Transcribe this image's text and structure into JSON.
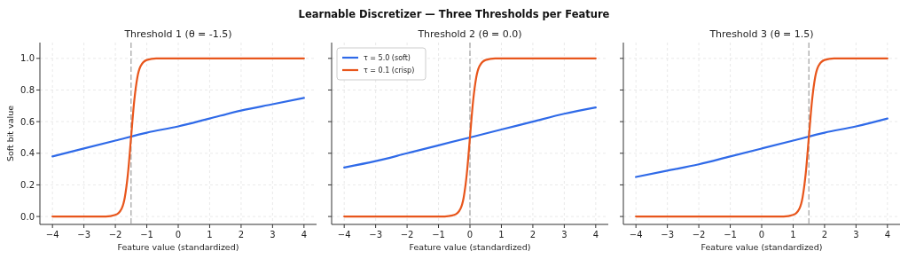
{
  "chart_data": [
    {
      "type": "line",
      "title": "Threshold 1  (θ = -1.5)",
      "xlabel": "Feature value (standardized)",
      "ylabel": "Soft bit value",
      "annotations": [
        "Learnable Discretizer — Three Thresholds per Feature"
      ],
      "xlim": [
        -4.4,
        4.4
      ],
      "ylim": [
        -0.05,
        1.1
      ],
      "xticks": [
        {
          "value": -4,
          "label": "−4"
        },
        {
          "value": -3,
          "label": "−3"
        },
        {
          "value": -2,
          "label": "−2"
        },
        {
          "value": -1,
          "label": "−1"
        },
        0,
        1,
        2,
        3,
        4
      ],
      "yticks": [
        {
          "value": 0,
          "label": "0.0"
        },
        0.2,
        0.4,
        0.6,
        0.8,
        {
          "value": 1,
          "label": "1.0"
        }
      ],
      "grid": true,
      "legend": false,
      "line_style": "solid",
      "marker": "none",
      "ref_lines": [
        {
          "axis": "x",
          "value": -1.5,
          "color": "#a0a0a0",
          "line_style": "dashed"
        }
      ],
      "series": [
        {
          "color": "#2f6ae8",
          "x": [
            -4,
            -3,
            -2,
            -1,
            0,
            1,
            2,
            3,
            4
          ],
          "values": [
            0.38,
            0.43,
            0.48,
            0.53,
            0.57,
            0.62,
            0.67,
            0.71,
            0.75
          ]
        },
        {
          "color": "#e8561c",
          "x": [
            -4,
            -2.3,
            -2,
            -1.8,
            -1.7,
            -1.6,
            -1.5,
            -1.4,
            -1.3,
            -1.2,
            -1,
            -0.7,
            4
          ],
          "values": [
            0,
            0,
            0.01,
            0.05,
            0.12,
            0.27,
            0.5,
            0.73,
            0.88,
            0.95,
            0.99,
            1,
            1
          ]
        }
      ]
    },
    {
      "type": "line",
      "title": "Threshold 2  (θ = 0.0)",
      "xlabel": "Feature value (standardized)",
      "xlim": [
        -4.4,
        4.4
      ],
      "ylim": [
        -0.05,
        1.1
      ],
      "xticks": [
        {
          "value": -4,
          "label": "−4"
        },
        {
          "value": -3,
          "label": "−3"
        },
        {
          "value": -2,
          "label": "−2"
        },
        {
          "value": -1,
          "label": "−1"
        },
        0,
        1,
        2,
        3,
        4
      ],
      "yticks": [
        0,
        0.2,
        0.4,
        0.6,
        0.8,
        1
      ],
      "tick_labels": "x",
      "grid": true,
      "legend": "top left",
      "line_style": "solid",
      "marker": "none",
      "ref_lines": [
        {
          "axis": "x",
          "value": 0,
          "color": "#a0a0a0",
          "line_style": "dashed"
        }
      ],
      "series": [
        {
          "name": "τ = 5.0  (soft)",
          "color": "#2f6ae8",
          "x": [
            -4,
            -3,
            -2,
            -1,
            0,
            1,
            2,
            3,
            4
          ],
          "values": [
            0.31,
            0.35,
            0.4,
            0.45,
            0.5,
            0.55,
            0.6,
            0.65,
            0.69
          ]
        },
        {
          "name": "τ = 0.1  (crisp)",
          "color": "#e8561c",
          "x": [
            -4,
            -0.8,
            -0.5,
            -0.3,
            -0.2,
            -0.1,
            0,
            0.1,
            0.2,
            0.3,
            0.5,
            0.8,
            4
          ],
          "values": [
            0,
            0,
            0.01,
            0.05,
            0.12,
            0.27,
            0.5,
            0.73,
            0.88,
            0.95,
            0.99,
            1,
            1
          ]
        }
      ]
    },
    {
      "type": "line",
      "title": "Threshold 3  (θ = 1.5)",
      "xlabel": "Feature value (standardized)",
      "xlim": [
        -4.4,
        4.4
      ],
      "ylim": [
        -0.05,
        1.1
      ],
      "xticks": [
        {
          "value": -4,
          "label": "−4"
        },
        {
          "value": -3,
          "label": "−3"
        },
        {
          "value": -2,
          "label": "−2"
        },
        {
          "value": -1,
          "label": "−1"
        },
        0,
        1,
        2,
        3,
        4
      ],
      "yticks": [
        0,
        0.2,
        0.4,
        0.6,
        0.8,
        1
      ],
      "tick_labels": "x",
      "grid": true,
      "legend": false,
      "line_style": "solid",
      "marker": "none",
      "ref_lines": [
        {
          "axis": "x",
          "value": 1.5,
          "color": "#a0a0a0",
          "line_style": "dashed"
        }
      ],
      "series": [
        {
          "color": "#2f6ae8",
          "x": [
            -4,
            -3,
            -2,
            -1,
            0,
            1,
            2,
            3,
            4
          ],
          "values": [
            0.25,
            0.29,
            0.33,
            0.38,
            0.43,
            0.48,
            0.53,
            0.57,
            0.62
          ]
        },
        {
          "color": "#e8561c",
          "x": [
            -4,
            0.7,
            1,
            1.2,
            1.3,
            1.4,
            1.5,
            1.6,
            1.7,
            1.8,
            2,
            2.3,
            4
          ],
          "values": [
            0,
            0,
            0.01,
            0.05,
            0.12,
            0.27,
            0.5,
            0.73,
            0.88,
            0.95,
            0.99,
            1,
            1
          ]
        }
      ]
    }
  ]
}
